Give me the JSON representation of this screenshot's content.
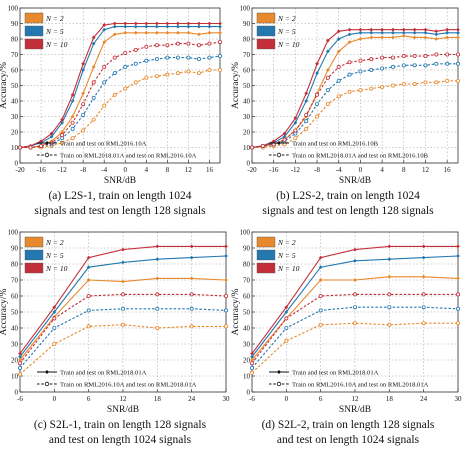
{
  "chart_data": [
    {
      "panel": "a",
      "type": "line",
      "xlabel": "SNR/dB",
      "ylabel": "Accuracy/%",
      "xlim": [
        -20,
        18
      ],
      "ylim": [
        0,
        100
      ],
      "xticks": [
        "-20",
        "-16",
        "-12",
        "-8",
        "-4",
        "0",
        "4",
        "8",
        "12",
        "16"
      ],
      "yticks": [
        "0",
        "10",
        "20",
        "30",
        "40",
        "50",
        "60",
        "70",
        "80",
        "90",
        "100"
      ],
      "grid": true,
      "legend_position": "top-left",
      "x": [
        -20,
        -18,
        -16,
        -14,
        -12,
        -10,
        -8,
        -6,
        -4,
        -2,
        0,
        2,
        4,
        6,
        8,
        10,
        12,
        14,
        16,
        18
      ],
      "series": [
        {
          "name": "N = 2",
          "color": "#e8892b",
          "values": [
            10,
            10,
            11,
            14,
            20,
            30,
            45,
            62,
            78,
            83,
            84,
            84,
            84,
            84,
            84,
            84,
            84,
            83,
            84,
            84
          ],
          "dashed": false
        },
        {
          "name": "N = 5",
          "color": "#2478b0",
          "values": [
            10,
            11,
            13,
            17,
            26,
            40,
            60,
            77,
            86,
            88,
            88,
            88,
            88,
            88,
            88,
            88,
            88,
            88,
            88,
            88
          ],
          "dashed": false
        },
        {
          "name": "N = 10",
          "color": "#c32f39",
          "values": [
            10,
            11,
            14,
            19,
            28,
            44,
            64,
            81,
            89,
            90,
            90,
            90,
            90,
            90,
            90,
            90,
            90,
            90,
            90,
            90
          ],
          "dashed": false
        },
        {
          "name": "N = 2",
          "color": "#e8892b",
          "values": [
            10,
            10,
            10,
            11,
            13,
            16,
            21,
            28,
            37,
            44,
            48,
            52,
            55,
            56,
            57,
            58,
            59,
            58,
            60,
            60
          ],
          "dashed": true
        },
        {
          "name": "N = 5",
          "color": "#2478b0",
          "values": [
            10,
            10,
            11,
            12,
            16,
            22,
            31,
            42,
            52,
            58,
            62,
            64,
            66,
            67,
            68,
            68,
            68,
            67,
            68,
            69
          ],
          "dashed": true
        },
        {
          "name": "N = 10",
          "color": "#c32f39",
          "values": [
            10,
            10,
            11,
            13,
            18,
            26,
            38,
            52,
            62,
            68,
            71,
            73,
            75,
            76,
            76,
            77,
            77,
            76,
            77,
            78
          ],
          "dashed": true
        }
      ],
      "legend_n": [
        "N = 2",
        "N = 5",
        "N = 10"
      ],
      "legend_solid": "Train and test on RML2016.10A",
      "legend_dashed": "Train on RML2018.01A and  test on RML2016.10A",
      "caption": [
        "(a) L2S-1, train on length 1024",
        "signals and test on length 128 signals"
      ]
    },
    {
      "panel": "b",
      "type": "line",
      "xlabel": "SNR/dB",
      "ylabel": "Accuracy/%",
      "xlim": [
        -20,
        18
      ],
      "ylim": [
        0,
        100
      ],
      "xticks": [
        "-20",
        "-16",
        "-12",
        "-8",
        "-4",
        "0",
        "4",
        "8",
        "12",
        "16"
      ],
      "yticks": [
        "0",
        "10",
        "20",
        "30",
        "40",
        "50",
        "60",
        "70",
        "80",
        "90",
        "100"
      ],
      "grid": true,
      "legend_position": "top-left",
      "x": [
        -20,
        -18,
        -16,
        -14,
        -12,
        -10,
        -8,
        -6,
        -4,
        -2,
        0,
        2,
        4,
        6,
        8,
        10,
        12,
        14,
        16,
        18
      ],
      "series": [
        {
          "name": "N = 2",
          "color": "#e8892b",
          "values": [
            10,
            11,
            12,
            15,
            21,
            30,
            45,
            60,
            72,
            78,
            80,
            81,
            81,
            81,
            82,
            81,
            81,
            80,
            81,
            81
          ],
          "dashed": false
        },
        {
          "name": "N = 5",
          "color": "#2478b0",
          "values": [
            10,
            11,
            13,
            17,
            26,
            40,
            58,
            72,
            80,
            83,
            84,
            84,
            84,
            84,
            84,
            84,
            84,
            83,
            84,
            84
          ],
          "dashed": false
        },
        {
          "name": "N = 10",
          "color": "#c32f39",
          "values": [
            10,
            11,
            14,
            19,
            29,
            45,
            64,
            79,
            85,
            86,
            86,
            86,
            86,
            86,
            86,
            86,
            86,
            85,
            86,
            86
          ],
          "dashed": false
        },
        {
          "name": "N = 2",
          "color": "#e8892b",
          "values": [
            10,
            10,
            11,
            12,
            16,
            22,
            30,
            38,
            43,
            46,
            47,
            48,
            49,
            50,
            51,
            51,
            52,
            52,
            53,
            53
          ],
          "dashed": true
        },
        {
          "name": "N = 5",
          "color": "#2478b0",
          "values": [
            10,
            11,
            12,
            14,
            19,
            27,
            38,
            47,
            53,
            57,
            59,
            60,
            61,
            62,
            63,
            63,
            63,
            64,
            64,
            64
          ],
          "dashed": true
        },
        {
          "name": "N = 10",
          "color": "#c32f39",
          "values": [
            10,
            11,
            12,
            15,
            21,
            31,
            44,
            55,
            62,
            65,
            66,
            67,
            68,
            68,
            69,
            69,
            69,
            70,
            70,
            70
          ],
          "dashed": true
        }
      ],
      "legend_n": [
        "N = 2",
        "N = 5",
        "N = 10"
      ],
      "legend_solid": "Train and test on RML2016.10B",
      "legend_dashed": "Train on RML2018.01A and  test on RML2016.10B",
      "caption": [
        "(b) L2S-2, train on length 1024",
        "signals and test on length 128 signals"
      ]
    },
    {
      "panel": "c",
      "type": "line",
      "xlabel": "SNR/dB",
      "ylabel": "Accuracy/%",
      "xlim": [
        -6,
        30
      ],
      "ylim": [
        0,
        100
      ],
      "xticks": [
        "-6",
        "0",
        "6",
        "12",
        "18",
        "24",
        "30"
      ],
      "yticks": [
        "0",
        "10",
        "20",
        "30",
        "40",
        "50",
        "60",
        "70",
        "80",
        "90",
        "100"
      ],
      "grid": true,
      "legend_position": "top-left",
      "x": [
        -6,
        0,
        6,
        12,
        18,
        24,
        30
      ],
      "series": [
        {
          "name": "N = 2",
          "color": "#e8892b",
          "values": [
            20,
            47,
            70,
            69,
            71,
            71,
            70
          ],
          "dashed": false
        },
        {
          "name": "N = 5",
          "color": "#2478b0",
          "values": [
            22,
            50,
            78,
            81,
            83,
            84,
            85
          ],
          "dashed": false
        },
        {
          "name": "N = 10",
          "color": "#c32f39",
          "values": [
            24,
            53,
            84,
            89,
            91,
            91,
            91
          ],
          "dashed": false
        },
        {
          "name": "N = 2",
          "color": "#e8892b",
          "values": [
            11,
            30,
            41,
            42,
            40,
            41,
            41
          ],
          "dashed": true
        },
        {
          "name": "N = 5",
          "color": "#2478b0",
          "values": [
            15,
            40,
            51,
            52,
            52,
            52,
            51
          ],
          "dashed": true
        },
        {
          "name": "N = 10",
          "color": "#c32f39",
          "values": [
            18,
            46,
            60,
            61,
            61,
            61,
            60
          ],
          "dashed": true
        }
      ],
      "legend_n": [
        "N = 2",
        "N = 5",
        "N = 10"
      ],
      "legend_solid": "Train and test on RML2018.01A",
      "legend_dashed": "Train on RML2016.10A and  test on RML2018.01A",
      "caption": [
        "(c) S2L-1, train on length 128 signals",
        "and test on length 1024 signals"
      ]
    },
    {
      "panel": "d",
      "type": "line",
      "xlabel": "SNR/dB",
      "ylabel": "Accuracy/%",
      "xlim": [
        -6,
        30
      ],
      "ylim": [
        0,
        100
      ],
      "xticks": [
        "-6",
        "0",
        "6",
        "12",
        "18",
        "24",
        "30"
      ],
      "yticks": [
        "0",
        "10",
        "20",
        "30",
        "40",
        "50",
        "60",
        "70",
        "80",
        "90",
        "100"
      ],
      "grid": true,
      "legend_position": "top-left",
      "x": [
        -6,
        0,
        6,
        12,
        18,
        24,
        30
      ],
      "series": [
        {
          "name": "N = 2",
          "color": "#e8892b",
          "values": [
            20,
            46,
            70,
            70,
            72,
            72,
            71
          ],
          "dashed": false
        },
        {
          "name": "N = 5",
          "color": "#2478b0",
          "values": [
            22,
            50,
            78,
            82,
            83,
            84,
            85
          ],
          "dashed": false
        },
        {
          "name": "N = 10",
          "color": "#c32f39",
          "values": [
            24,
            53,
            84,
            89,
            91,
            91,
            91
          ],
          "dashed": false
        },
        {
          "name": "N = 2",
          "color": "#e8892b",
          "values": [
            12,
            32,
            42,
            43,
            42,
            43,
            43
          ],
          "dashed": true
        },
        {
          "name": "N = 5",
          "color": "#2478b0",
          "values": [
            15,
            40,
            51,
            53,
            53,
            53,
            52
          ],
          "dashed": true
        },
        {
          "name": "N = 10",
          "color": "#c32f39",
          "values": [
            18,
            46,
            60,
            61,
            61,
            61,
            61
          ],
          "dashed": true
        }
      ],
      "legend_n": [
        "N = 2",
        "N = 5",
        "N = 10"
      ],
      "legend_solid": "Train and test on RML2018.01A",
      "legend_dashed": "Train on RML2016.10A and  test on RML2018.01A",
      "caption": [
        "(d) S2L-2, train on length 128 signals",
        "and test on length 1024 signals"
      ]
    }
  ]
}
